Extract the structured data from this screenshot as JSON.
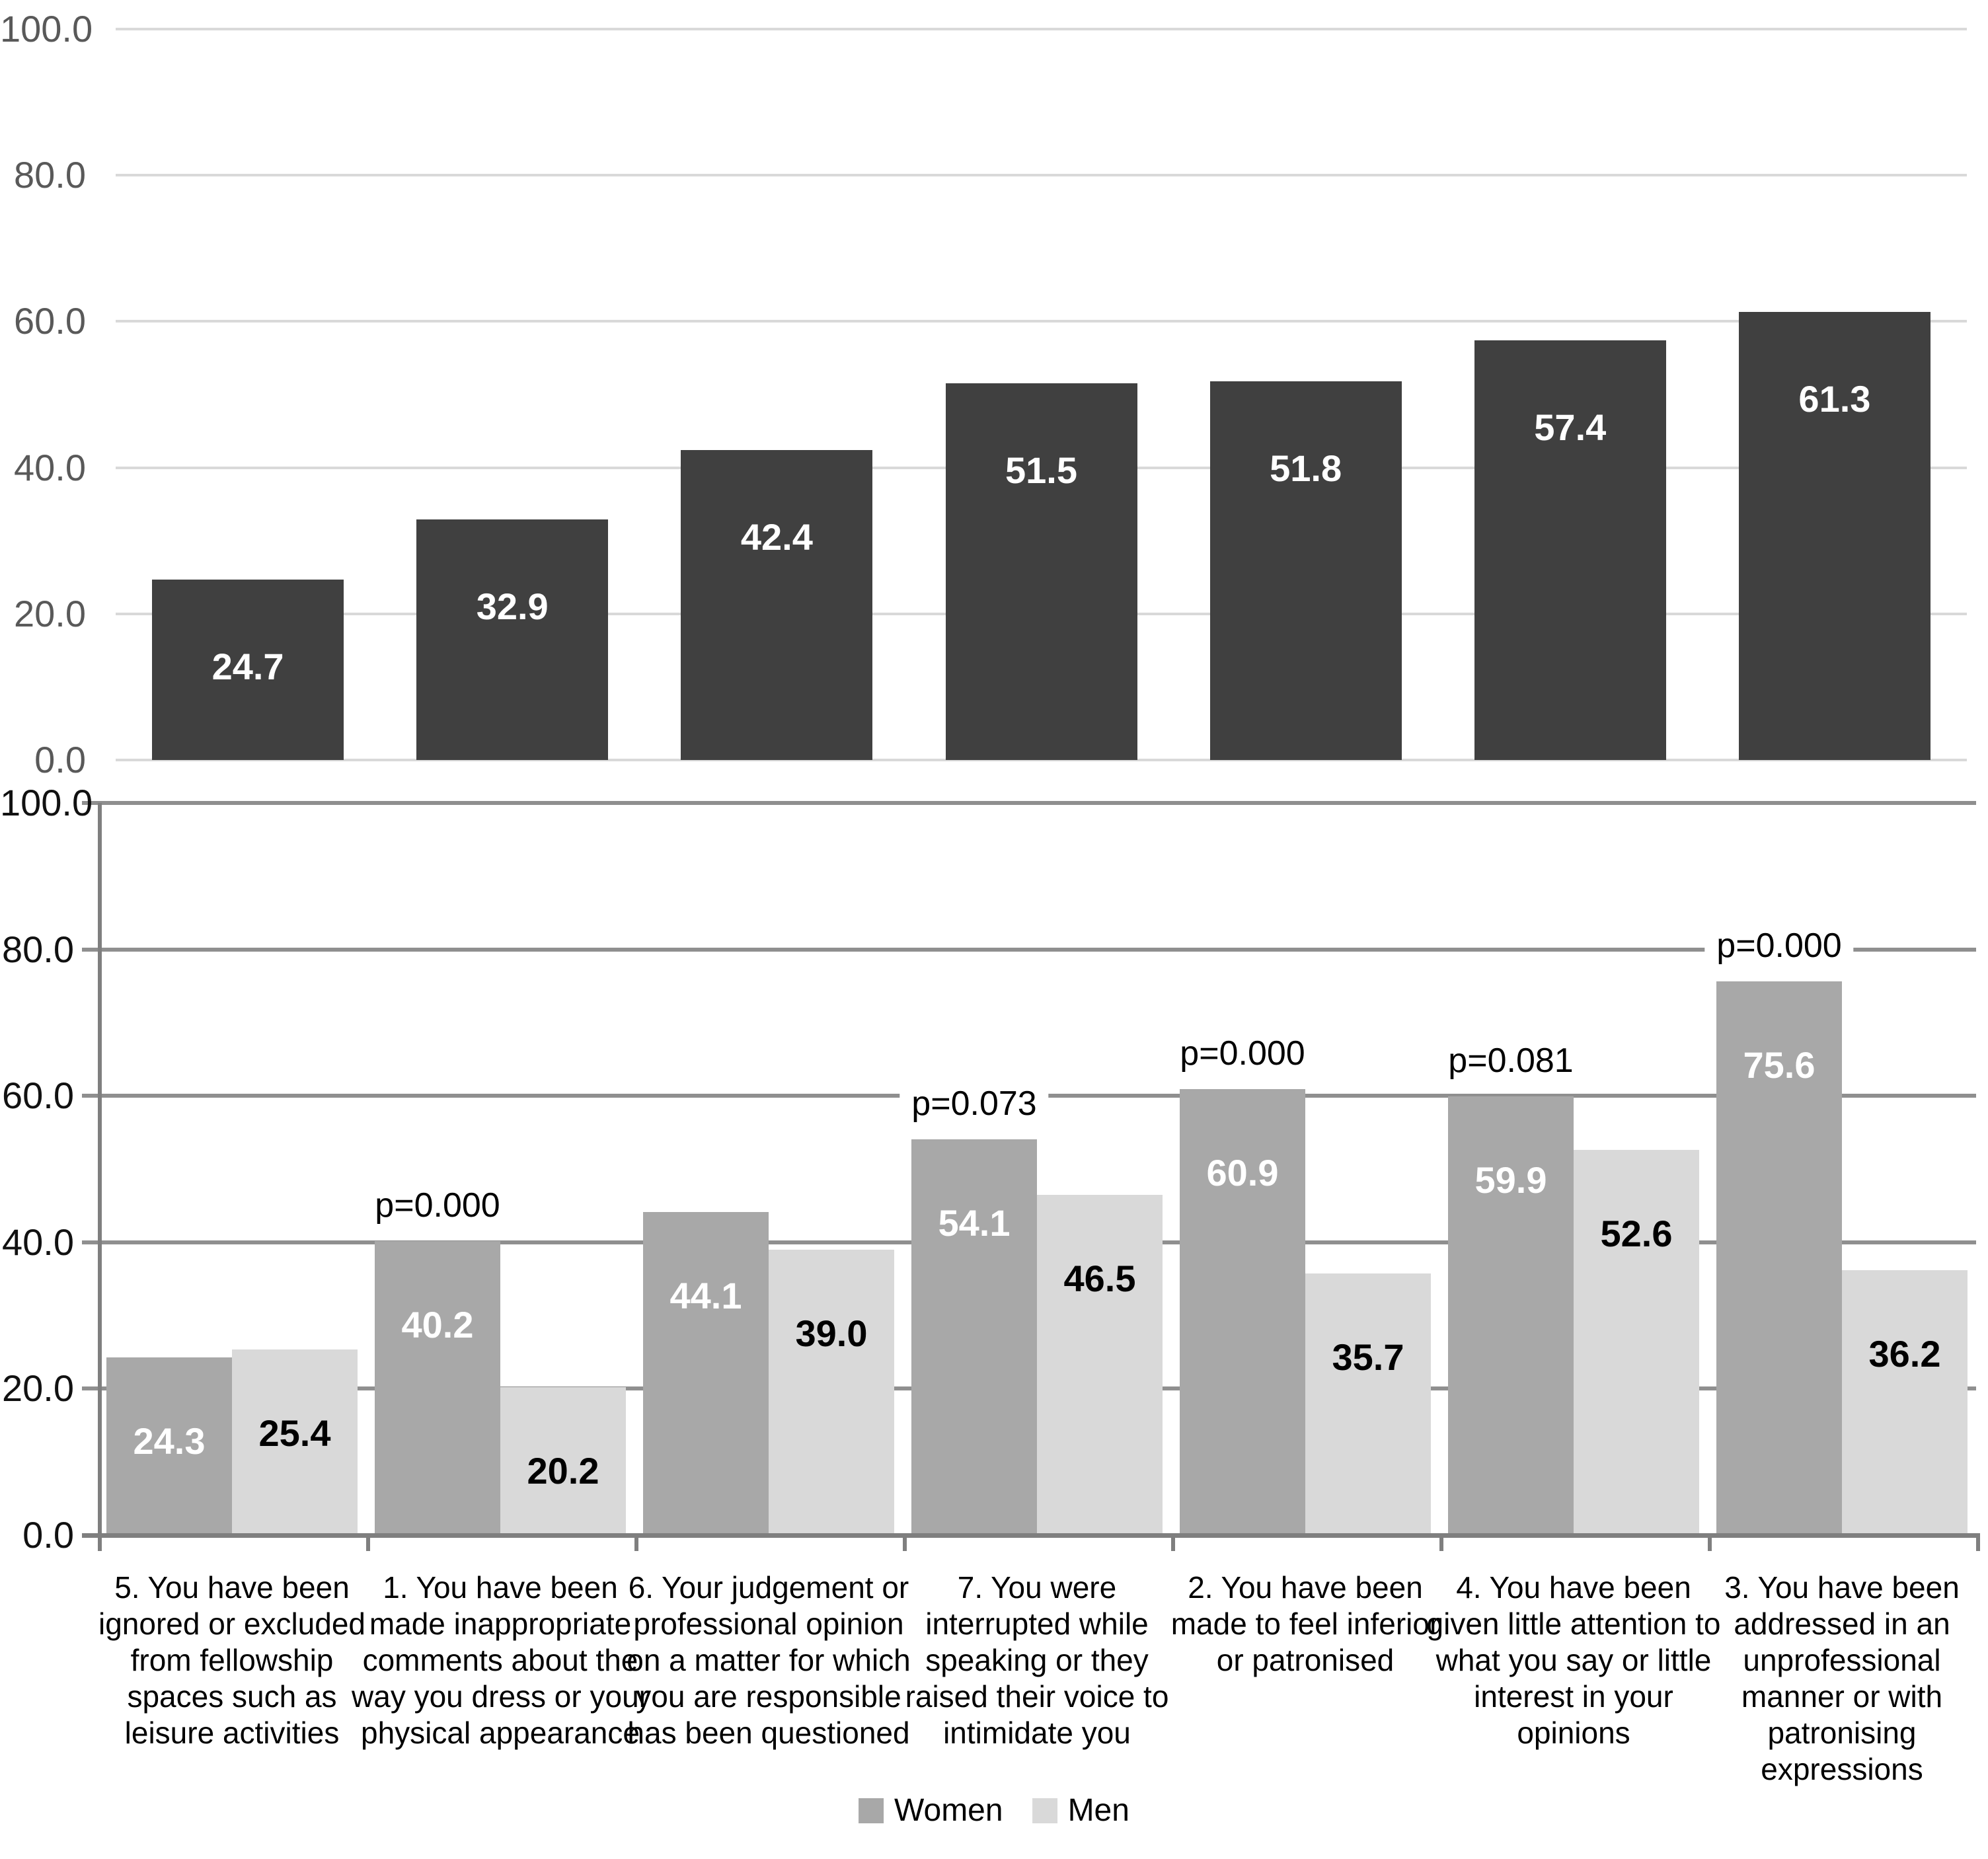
{
  "chart_data": [
    {
      "type": "bar",
      "title": "",
      "xlabel": "",
      "ylabel": "",
      "ylim": [
        0,
        100
      ],
      "grid": true,
      "y_ticks": [
        "100.0",
        "80.0",
        "60.0",
        "40.0",
        "20.0",
        "0.0"
      ],
      "values": [
        24.7,
        32.9,
        42.4,
        51.5,
        51.8,
        57.4,
        61.3
      ],
      "bar_labels": [
        "24.7",
        "32.9",
        "42.4",
        "51.5",
        "51.8",
        "57.4",
        "61.3"
      ],
      "bar_color": "#404040",
      "label_color": "#ffffff"
    },
    {
      "type": "grouped-bar",
      "title": "",
      "xlabel": "",
      "ylabel": "",
      "ylim": [
        0,
        100
      ],
      "grid": true,
      "legend_position": "bottom",
      "y_ticks": [
        "100.0",
        "80.0",
        "60.0",
        "40.0",
        "20.0",
        "0.0"
      ],
      "categories": [
        "5. You have been ignored or excluded from fellowship spaces such as leisure activities",
        "1. You have been made inappropriate comments about the way you dress or your physical appearance",
        "6. Your judgement or professional opinion on a matter for which you are responsible has been questioned",
        "7. You were interrupted while speaking or they raised their voice to intimidate you",
        "2. You have been made to feel inferior or patronised",
        "4. You have been given little attention to what you say or little interest in your opinions",
        "3. You have been addressed in an unprofessional manner or with patronising expressions"
      ],
      "series": [
        {
          "name": "Women",
          "color": "#a8a8a8",
          "label_color": "#ffffff",
          "values": [
            24.3,
            40.2,
            44.1,
            54.1,
            60.9,
            59.9,
            75.6
          ],
          "labels": [
            "24.3",
            "40.2",
            "44.1",
            "54.1",
            "60.9",
            "59.9",
            "75.6"
          ]
        },
        {
          "name": "Men",
          "color": "#d9d9d9",
          "label_color": "#000000",
          "values": [
            25.4,
            20.2,
            39.0,
            46.5,
            35.7,
            52.6,
            36.2
          ],
          "labels": [
            "25.4",
            "20.2",
            "39.0",
            "46.5",
            "35.7",
            "52.6",
            "36.2"
          ]
        }
      ],
      "p_values": [
        "",
        "p=0.000",
        "",
        "p=0.073",
        "p=0.000",
        "p=0.081",
        "p=0.000"
      ]
    }
  ],
  "legend": {
    "women_label": "Women",
    "men_label": "Men"
  }
}
